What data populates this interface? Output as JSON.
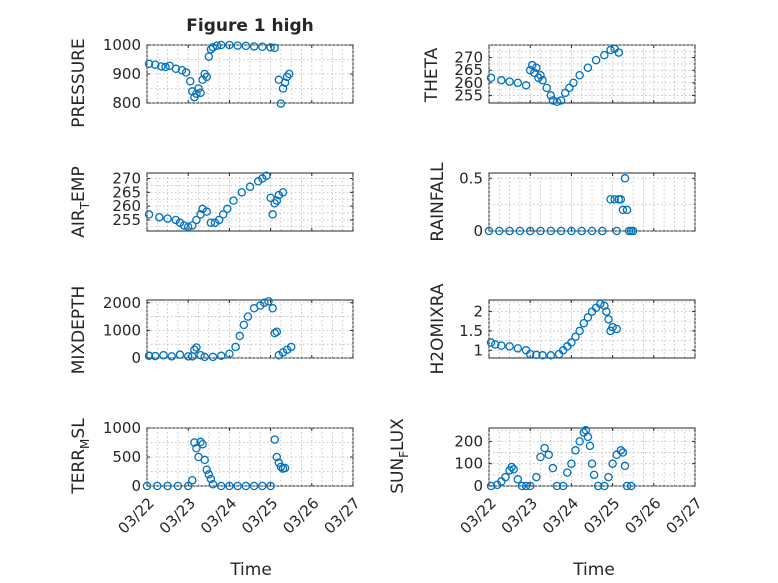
{
  "figure": {
    "title": "Figure 1 high",
    "xlabel": "Time",
    "xtick_labels": [
      "03/22",
      "03/23",
      "03/24",
      "03/25",
      "03/26",
      "03/27"
    ],
    "marker_color": "#0072bd",
    "grid": true
  },
  "chart_data": [
    {
      "type": "scatter",
      "id": "pressure",
      "ylabel": "PRESSURE",
      "title": "Figure 1 high",
      "xlim": [
        0,
        5
      ],
      "ylim": [
        800,
        1000
      ],
      "yticks": [
        800,
        900,
        1000
      ],
      "x_unit": "days since 03/22",
      "points": [
        [
          0.05,
          935
        ],
        [
          0.2,
          932
        ],
        [
          0.35,
          926
        ],
        [
          0.45,
          924
        ],
        [
          0.55,
          928
        ],
        [
          0.7,
          918
        ],
        [
          0.85,
          913
        ],
        [
          0.95,
          905
        ],
        [
          1.05,
          875
        ],
        [
          1.1,
          840
        ],
        [
          1.15,
          820
        ],
        [
          1.2,
          832
        ],
        [
          1.25,
          850
        ],
        [
          1.3,
          835
        ],
        [
          1.35,
          880
        ],
        [
          1.4,
          900
        ],
        [
          1.45,
          890
        ],
        [
          1.5,
          960
        ],
        [
          1.55,
          985
        ],
        [
          1.6,
          992
        ],
        [
          1.7,
          998
        ],
        [
          1.8,
          1000
        ],
        [
          2.0,
          1000
        ],
        [
          2.2,
          998
        ],
        [
          2.4,
          997
        ],
        [
          2.6,
          995
        ],
        [
          2.8,
          994
        ],
        [
          3.0,
          992
        ],
        [
          3.1,
          990
        ],
        [
          3.2,
          880
        ],
        [
          3.25,
          798
        ],
        [
          3.3,
          850
        ],
        [
          3.35,
          870
        ],
        [
          3.4,
          890
        ],
        [
          3.45,
          900
        ]
      ]
    },
    {
      "type": "scatter",
      "id": "theta",
      "ylabel": "THETA",
      "xlim": [
        0,
        5
      ],
      "ylim": [
        252,
        275
      ],
      "yticks": [
        255,
        260,
        265,
        270
      ],
      "points": [
        [
          0.05,
          262
        ],
        [
          0.3,
          261
        ],
        [
          0.5,
          260.5
        ],
        [
          0.7,
          260
        ],
        [
          0.9,
          259
        ],
        [
          1.0,
          265
        ],
        [
          1.05,
          267
        ],
        [
          1.1,
          264
        ],
        [
          1.15,
          266
        ],
        [
          1.2,
          262
        ],
        [
          1.25,
          263
        ],
        [
          1.3,
          261
        ],
        [
          1.4,
          258
        ],
        [
          1.5,
          255
        ],
        [
          1.55,
          253
        ],
        [
          1.65,
          252.5
        ],
        [
          1.75,
          253
        ],
        [
          1.85,
          256
        ],
        [
          1.95,
          258
        ],
        [
          2.05,
          260
        ],
        [
          2.2,
          263
        ],
        [
          2.4,
          266
        ],
        [
          2.6,
          269
        ],
        [
          2.8,
          271
        ],
        [
          2.95,
          273
        ],
        [
          3.05,
          273.5
        ],
        [
          3.15,
          272
        ]
      ]
    },
    {
      "type": "scatter",
      "id": "air_temp",
      "ylabel": "AIR_TEMP",
      "xlim": [
        0,
        5
      ],
      "ylim": [
        251,
        272
      ],
      "yticks": [
        255,
        260,
        265,
        270
      ],
      "points": [
        [
          0.05,
          257
        ],
        [
          0.3,
          256
        ],
        [
          0.5,
          255.5
        ],
        [
          0.7,
          255
        ],
        [
          0.8,
          254
        ],
        [
          0.9,
          253
        ],
        [
          1.0,
          252.5
        ],
        [
          1.1,
          253
        ],
        [
          1.2,
          255
        ],
        [
          1.3,
          257
        ],
        [
          1.35,
          259
        ],
        [
          1.45,
          258
        ],
        [
          1.55,
          254
        ],
        [
          1.65,
          254
        ],
        [
          1.75,
          255
        ],
        [
          1.85,
          257
        ],
        [
          1.95,
          259
        ],
        [
          2.1,
          262
        ],
        [
          2.3,
          265
        ],
        [
          2.5,
          267
        ],
        [
          2.7,
          269
        ],
        [
          2.8,
          270
        ],
        [
          2.9,
          271
        ],
        [
          3.0,
          263
        ],
        [
          3.05,
          257
        ],
        [
          3.1,
          261
        ],
        [
          3.15,
          262
        ],
        [
          3.2,
          264
        ],
        [
          3.3,
          265
        ]
      ]
    },
    {
      "type": "scatter",
      "id": "rainfall",
      "ylabel": "RAINFALL",
      "xlim": [
        0,
        5
      ],
      "ylim": [
        0,
        0.55
      ],
      "yticks": [
        0,
        0.5
      ],
      "points": [
        [
          0.0,
          0
        ],
        [
          0.25,
          0
        ],
        [
          0.5,
          0
        ],
        [
          0.75,
          0
        ],
        [
          1.0,
          0
        ],
        [
          1.25,
          0
        ],
        [
          1.5,
          0
        ],
        [
          1.75,
          0
        ],
        [
          2.0,
          0
        ],
        [
          2.25,
          0
        ],
        [
          2.5,
          0
        ],
        [
          2.75,
          0
        ],
        [
          2.95,
          0.3
        ],
        [
          3.05,
          0.3
        ],
        [
          3.1,
          0
        ],
        [
          3.15,
          0.3
        ],
        [
          3.2,
          0.3
        ],
        [
          3.25,
          0.2
        ],
        [
          3.3,
          0.5
        ],
        [
          3.35,
          0.2
        ],
        [
          3.4,
          0
        ],
        [
          3.45,
          0
        ],
        [
          3.5,
          0
        ]
      ]
    },
    {
      "type": "scatter",
      "id": "mixdepth",
      "ylabel": "MIXDEPTH",
      "xlim": [
        0,
        5
      ],
      "ylim": [
        0,
        2100
      ],
      "yticks": [
        0,
        1000,
        2000
      ],
      "points": [
        [
          0.05,
          80
        ],
        [
          0.2,
          70
        ],
        [
          0.4,
          100
        ],
        [
          0.6,
          60
        ],
        [
          0.8,
          120
        ],
        [
          1.0,
          60
        ],
        [
          1.1,
          60
        ],
        [
          1.15,
          300
        ],
        [
          1.2,
          380
        ],
        [
          1.3,
          100
        ],
        [
          1.4,
          40
        ],
        [
          1.6,
          40
        ],
        [
          1.8,
          80
        ],
        [
          2.0,
          150
        ],
        [
          2.15,
          400
        ],
        [
          2.25,
          800
        ],
        [
          2.35,
          1200
        ],
        [
          2.45,
          1500
        ],
        [
          2.6,
          1800
        ],
        [
          2.75,
          1900
        ],
        [
          2.85,
          2000
        ],
        [
          2.95,
          2050
        ],
        [
          3.05,
          1800
        ],
        [
          3.1,
          900
        ],
        [
          3.15,
          950
        ],
        [
          3.2,
          100
        ],
        [
          3.3,
          200
        ],
        [
          3.4,
          300
        ],
        [
          3.5,
          400
        ]
      ]
    },
    {
      "type": "scatter",
      "id": "h2omixra",
      "ylabel": "H2OMIXRA",
      "xlim": [
        0,
        5
      ],
      "ylim": [
        0.8,
        2.3
      ],
      "yticks": [
        1,
        1.5,
        2
      ],
      "points": [
        [
          0.05,
          1.2
        ],
        [
          0.15,
          1.15
        ],
        [
          0.3,
          1.12
        ],
        [
          0.5,
          1.1
        ],
        [
          0.7,
          1.05
        ],
        [
          0.9,
          1.0
        ],
        [
          1.0,
          0.9
        ],
        [
          1.15,
          0.88
        ],
        [
          1.3,
          0.87
        ],
        [
          1.5,
          0.87
        ],
        [
          1.7,
          0.9
        ],
        [
          1.8,
          1.0
        ],
        [
          1.9,
          1.1
        ],
        [
          2.0,
          1.2
        ],
        [
          2.1,
          1.35
        ],
        [
          2.2,
          1.5
        ],
        [
          2.3,
          1.7
        ],
        [
          2.4,
          1.85
        ],
        [
          2.5,
          2.0
        ],
        [
          2.6,
          2.1
        ],
        [
          2.7,
          2.2
        ],
        [
          2.8,
          2.15
        ],
        [
          2.85,
          2.0
        ],
        [
          2.9,
          1.8
        ],
        [
          2.95,
          1.5
        ],
        [
          3.0,
          1.6
        ],
        [
          3.1,
          1.55
        ]
      ]
    },
    {
      "type": "scatter",
      "id": "terr_msl",
      "ylabel": "TERR_MSL",
      "xlim": [
        0,
        5
      ],
      "ylim": [
        0,
        1000
      ],
      "yticks": [
        0,
        500,
        1000
      ],
      "points": [
        [
          0.0,
          0
        ],
        [
          0.25,
          0
        ],
        [
          0.5,
          0
        ],
        [
          0.75,
          0
        ],
        [
          1.0,
          0
        ],
        [
          1.1,
          100
        ],
        [
          1.15,
          750
        ],
        [
          1.2,
          650
        ],
        [
          1.25,
          500
        ],
        [
          1.3,
          760
        ],
        [
          1.35,
          720
        ],
        [
          1.4,
          450
        ],
        [
          1.45,
          280
        ],
        [
          1.5,
          200
        ],
        [
          1.55,
          120
        ],
        [
          1.6,
          30
        ],
        [
          1.8,
          0
        ],
        [
          2.0,
          0
        ],
        [
          2.2,
          0
        ],
        [
          2.4,
          0
        ],
        [
          2.6,
          0
        ],
        [
          2.8,
          0
        ],
        [
          3.0,
          0
        ],
        [
          3.1,
          800
        ],
        [
          3.15,
          500
        ],
        [
          3.2,
          400
        ],
        [
          3.25,
          330
        ],
        [
          3.3,
          300
        ],
        [
          3.35,
          310
        ]
      ]
    },
    {
      "type": "scatter",
      "id": "sun_flux",
      "ylabel": "SUN_FLUX",
      "xlim": [
        0,
        5
      ],
      "ylim": [
        0,
        260
      ],
      "yticks": [
        0,
        100,
        200
      ],
      "points": [
        [
          0.05,
          0
        ],
        [
          0.2,
          5
        ],
        [
          0.3,
          20
        ],
        [
          0.4,
          40
        ],
        [
          0.5,
          70
        ],
        [
          0.55,
          85
        ],
        [
          0.6,
          75
        ],
        [
          0.7,
          30
        ],
        [
          0.8,
          0
        ],
        [
          0.9,
          0
        ],
        [
          1.0,
          0
        ],
        [
          1.15,
          40
        ],
        [
          1.25,
          130
        ],
        [
          1.35,
          170
        ],
        [
          1.45,
          140
        ],
        [
          1.55,
          80
        ],
        [
          1.65,
          0
        ],
        [
          1.8,
          0
        ],
        [
          1.9,
          60
        ],
        [
          2.0,
          100
        ],
        [
          2.1,
          160
        ],
        [
          2.2,
          200
        ],
        [
          2.3,
          240
        ],
        [
          2.35,
          250
        ],
        [
          2.4,
          220
        ],
        [
          2.45,
          180
        ],
        [
          2.5,
          100
        ],
        [
          2.55,
          50
        ],
        [
          2.65,
          0
        ],
        [
          2.8,
          0
        ],
        [
          2.9,
          40
        ],
        [
          3.0,
          100
        ],
        [
          3.1,
          140
        ],
        [
          3.2,
          160
        ],
        [
          3.25,
          150
        ],
        [
          3.3,
          90
        ],
        [
          3.35,
          0
        ],
        [
          3.45,
          0
        ]
      ]
    }
  ]
}
